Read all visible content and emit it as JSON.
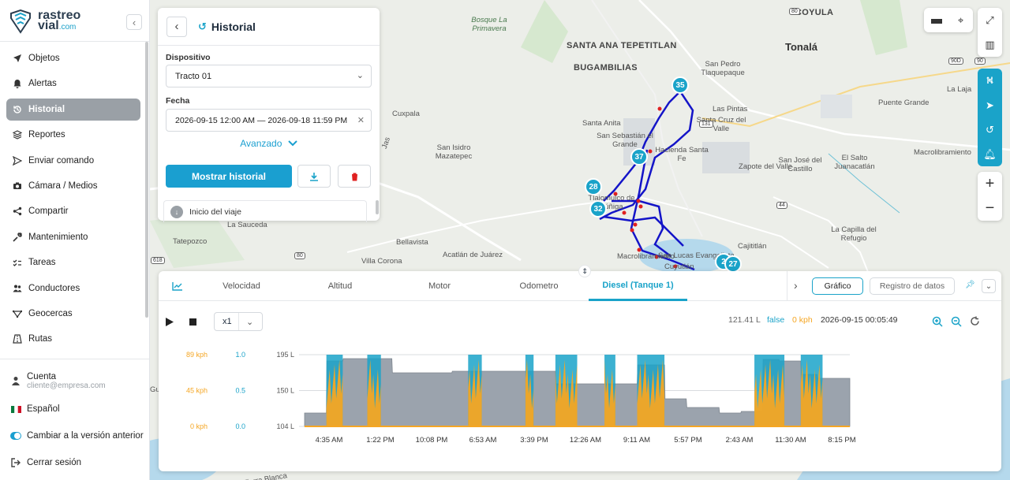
{
  "brand": {
    "line1": "rastreo",
    "line2": "vial",
    "tld": ".com"
  },
  "nav": [
    {
      "label": "Objetos",
      "icon": "navigation-arrow-icon"
    },
    {
      "label": "Alertas",
      "icon": "bell-icon"
    },
    {
      "label": "Historial",
      "icon": "history-icon",
      "active": true
    },
    {
      "label": "Reportes",
      "icon": "layers-icon"
    },
    {
      "label": "Enviar comando",
      "icon": "send-icon"
    },
    {
      "label": "Cámara / Medios",
      "icon": "camera-icon"
    },
    {
      "label": "Compartir",
      "icon": "share-icon"
    },
    {
      "label": "Mantenimiento",
      "icon": "wrench-icon"
    },
    {
      "label": "Tareas",
      "icon": "checklist-icon"
    },
    {
      "label": "Conductores",
      "icon": "users-icon"
    },
    {
      "label": "Geocercas",
      "icon": "geofence-icon"
    },
    {
      "label": "Rutas",
      "icon": "route-icon"
    }
  ],
  "account": {
    "label": "Cuenta",
    "email": "cliente@empresa.com"
  },
  "language": "Español",
  "legacy_toggle": "Cambiar a la versión anterior",
  "logout": "Cerrar sesión",
  "history_panel": {
    "title": "Historial",
    "device_label": "Dispositivo",
    "device_value": "Tracto 01",
    "date_label": "Fecha",
    "date_value": "2026-09-15 12:00 AM — 2026-09-18 11:59 PM",
    "advanced": "Avanzado",
    "show_button": "Mostrar historial",
    "trip_start": "Inicio del viaje"
  },
  "map": {
    "labels": [
      {
        "text": "Bosque La Primavera",
        "cls": "green"
      },
      {
        "text": "SANTA ANA TEPETITLAN",
        "cls": "big"
      },
      {
        "text": "BUGAMBILIAS",
        "cls": "big"
      },
      {
        "text": "Tonalá",
        "cls": "biggest"
      },
      {
        "text": "COYULA",
        "cls": "big"
      },
      {
        "text": "San Pedro Tlaquepaque",
        "cls": ""
      },
      {
        "text": "Las Pintas",
        "cls": ""
      },
      {
        "text": "Santa Cruz del Valle",
        "cls": ""
      },
      {
        "text": "Cuxpala",
        "cls": ""
      },
      {
        "text": "Santa Anita",
        "cls": ""
      },
      {
        "text": "San Sebastián el Grande",
        "cls": ""
      },
      {
        "text": "Hacienda Santa Fe",
        "cls": ""
      },
      {
        "text": "San Isidro Mazatepec",
        "cls": ""
      },
      {
        "text": "Zapote del Valle",
        "cls": ""
      },
      {
        "text": "San José del Castillo",
        "cls": ""
      },
      {
        "text": "El Salto Juanacatlán",
        "cls": ""
      },
      {
        "text": "Puente Grande",
        "cls": ""
      },
      {
        "text": "La Laja",
        "cls": ""
      },
      {
        "text": "La Capilla del Refugio",
        "cls": ""
      },
      {
        "text": "Cajititlán",
        "cls": ""
      },
      {
        "text": "Tatepozco",
        "cls": ""
      },
      {
        "text": "La Sauceda",
        "cls": ""
      },
      {
        "text": "Bellavista",
        "cls": ""
      },
      {
        "text": "Acatlán de Juárez",
        "cls": ""
      },
      {
        "text": "Villa Corona",
        "cls": ""
      },
      {
        "text": "San Lucas Evangelista",
        "cls": ""
      },
      {
        "text": "Cuyutlán",
        "cls": ""
      },
      {
        "text": "Tlajomulco de Zúñiga",
        "cls": ""
      },
      {
        "text": "Tierra Blanca",
        "cls": ""
      },
      {
        "text": "Macrolibramiento",
        "cls": ""
      },
      {
        "text": "Jas",
        "cls": ""
      },
      {
        "text": "Gu",
        "cls": ""
      },
      {
        "text": "Macrolibramiento",
        "cls": ""
      }
    ],
    "shields": [
      "131",
      "44",
      "80",
      "80",
      "618",
      "90D",
      "90"
    ],
    "clusters": [
      "35",
      "37",
      "28",
      "32",
      "2",
      "27"
    ]
  },
  "chart_panel": {
    "tabs": [
      "Velocidad",
      "Altitud",
      "Motor",
      "Odometro",
      "Diesel (Tanque 1)"
    ],
    "active_tab": "Diesel (Tanque 1)",
    "view_graph": "Gráfico",
    "view_log": "Registro de datos",
    "speed_multiplier": "x1",
    "readout_fuel": "121.41 L",
    "readout_flag": "false",
    "readout_speed": "0 kph",
    "readout_time": "2026-09-15 00:05:49"
  },
  "colors": {
    "accent": "#1aa3c9",
    "speed": "#f5a623",
    "fuel_fill": "#9ba3ad",
    "route": "#1414c8",
    "stops": "#e02020"
  },
  "chart_data": {
    "type": "area",
    "x_ticks": [
      "4:35 AM",
      "1:22 PM",
      "10:08 PM",
      "6:53 AM",
      "3:39 PM",
      "12:26 AM",
      "9:11 AM",
      "5:57 PM",
      "2:43 AM",
      "11:30 AM",
      "8:15 PM"
    ],
    "y_left_speed_ticks": [
      "89 kph",
      "45 kph",
      "0 kph"
    ],
    "y_mid_ticks": [
      "1.0",
      "0.5",
      "0.0"
    ],
    "y_fuel_ticks": [
      "195 L",
      "150 L",
      "104 L"
    ],
    "fuel_ylim": [
      104,
      195
    ],
    "series": [
      {
        "name": "Diesel (Tanque 1)",
        "unit": "L",
        "x": [
          0,
          0.04,
          0.041,
          0.07,
          0.071,
          0.16,
          0.161,
          0.27,
          0.271,
          0.46,
          0.461,
          0.61,
          0.611,
          0.66,
          0.661,
          0.7,
          0.701,
          0.76,
          0.761,
          0.8,
          0.801,
          0.84,
          0.841,
          0.87,
          0.871,
          0.91,
          0.911,
          0.94,
          0.941,
          1.0
        ],
        "values": [
          121,
          121,
          187,
          187,
          190,
          190,
          172,
          172,
          174,
          174,
          158,
          158,
          182,
          182,
          139,
          139,
          128,
          128,
          121,
          121,
          123,
          123,
          189,
          189,
          187,
          187,
          170,
          170,
          165,
          165
        ]
      }
    ],
    "speed_bursts_x": [
      [
        0.04,
        0.07
      ],
      [
        0.115,
        0.14
      ],
      [
        0.3,
        0.325
      ],
      [
        0.405,
        0.42
      ],
      [
        0.46,
        0.5
      ],
      [
        0.55,
        0.57
      ],
      [
        0.61,
        0.66
      ],
      [
        0.825,
        0.88
      ],
      [
        0.91,
        0.95
      ]
    ],
    "speed_max": 89
  }
}
